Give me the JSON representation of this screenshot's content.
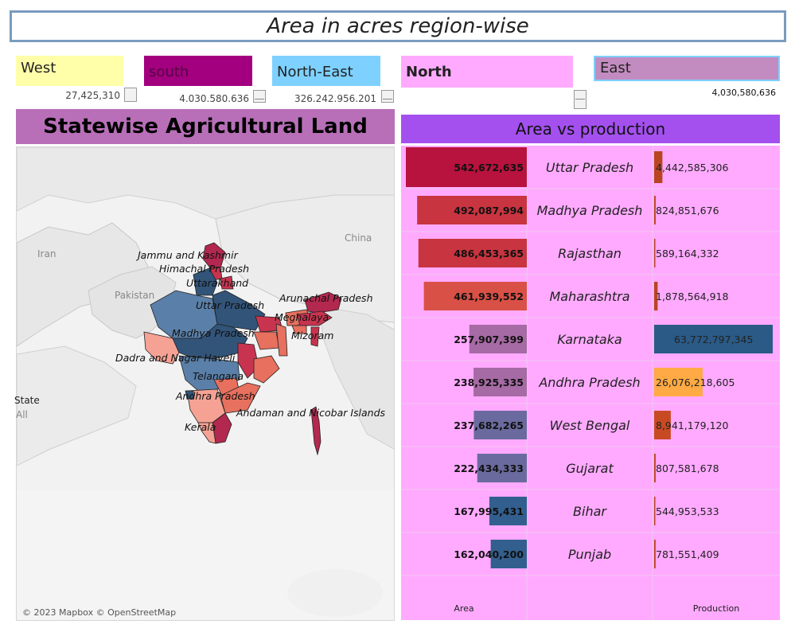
{
  "title": "Area in acres region-wise",
  "regions": [
    {
      "label": "West",
      "value": "27,425,310"
    },
    {
      "label": "south",
      "value": "4.030.580.636"
    },
    {
      "label": "North-East",
      "value": "326.242.956.201"
    },
    {
      "label": "North",
      "value": ""
    },
    {
      "label": "East",
      "value": "4,030,580,636"
    }
  ],
  "map": {
    "title": "Statewise Agricultural Land",
    "copyright": "© 2023 Mapbox © OpenStreetMap",
    "legend_title": "State",
    "legend_value": "All",
    "countries": [
      "Iran",
      "Pakistan",
      "China"
    ],
    "state_labels": [
      "Jammu and Kashmir",
      "Himachal Pradesh",
      "Uttarakhand",
      "Uttar Pradesh",
      "Arunachal Pradesh",
      "Meghalaya",
      "Mizoram",
      "Madhya Pradesh",
      "Dadra and Nagar Haveli",
      "Telangana",
      "Andhra Pradesh",
      "Andaman and Nicobar Islands",
      "Kerala"
    ],
    "colors": {
      "red_dark": "#b3284f",
      "red": "#c8344f",
      "salmon": "#e7705e",
      "light": "#f5a294",
      "blue": "#5a7fa8",
      "dark_blue": "#325479"
    }
  },
  "chart": {
    "title": "Area vs production",
    "x_label_area": "Area",
    "x_label_production": "Production"
  },
  "chart_data": {
    "type": "bar",
    "title": "Area vs production",
    "categories": [
      "Uttar Pradesh",
      "Madhya Pradesh",
      "Rajasthan",
      "Maharashtra",
      "Karnataka",
      "Andhra Pradesh",
      "West Bengal",
      "Gujarat",
      "Bihar",
      "Punjab"
    ],
    "series": [
      {
        "name": "Area",
        "values": [
          542672635,
          492087994,
          486453365,
          461939552,
          257907399,
          238925335,
          237682265,
          222434333,
          167995431,
          162040200
        ],
        "labels": [
          "542,672,635",
          "492,087,994",
          "486,453,365",
          "461,939,552",
          "257,907,399",
          "238,925,335",
          "237,682,265",
          "222,434,333",
          "167,995,431",
          "162,040,200"
        ],
        "colors": [
          "#b8123e",
          "#c8343f",
          "#c8343f",
          "#d95046",
          "#a66aa4",
          "#a66aa4",
          "#6a6a9e",
          "#6a6a9e",
          "#325f8e",
          "#325f8e"
        ]
      },
      {
        "name": "Production",
        "values": [
          4442585306,
          824851676,
          589164332,
          1878564918,
          63772797345,
          26076218605,
          8941179120,
          807581678,
          544953533,
          781551409
        ],
        "labels": [
          "4,442,585,306",
          "824,851,676",
          "589,164,332",
          "1,878,564,918",
          "63,772,797,345",
          "26,076,218,605",
          "8,941,179,120",
          "807,581,678",
          "544,953,533",
          "781,551,409"
        ],
        "colors": [
          "#b84422",
          "#b84422",
          "#b84422",
          "#b84422",
          "#2a5a85",
          "#ffaa44",
          "#c84a22",
          "#b84422",
          "#b84422",
          "#b84422"
        ]
      }
    ],
    "xlabel": "Area",
    "xlabel2": "Production"
  }
}
